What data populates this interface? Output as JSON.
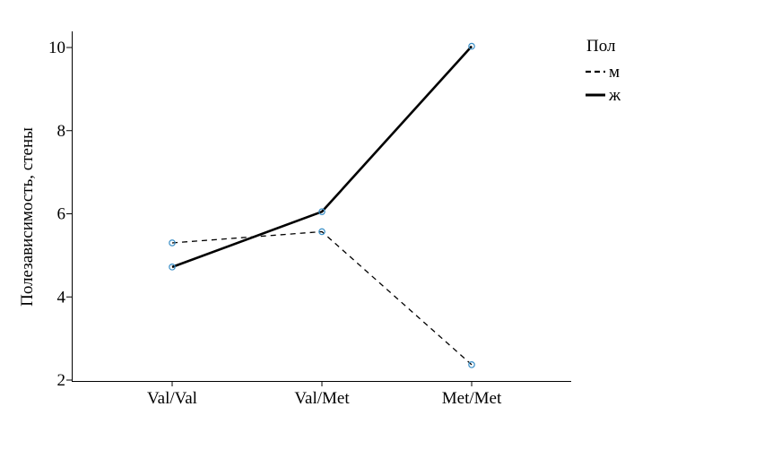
{
  "chart_data": {
    "type": "line",
    "categories": [
      "Val/Val",
      "Val/Met",
      "Met/Met"
    ],
    "ylabel": "Полезависимость, стены",
    "xlabel": "",
    "ylim": [
      2,
      10.5
    ],
    "yticks": [
      2,
      4,
      6,
      8,
      10
    ],
    "grid": false,
    "legend": {
      "title": "Пол",
      "placement": "right"
    },
    "series": [
      {
        "name": "м",
        "values": [
          5.3,
          5.57,
          2.37
        ],
        "line_style": "dashed"
      },
      {
        "name": "ж",
        "values": [
          4.72,
          6.05,
          10.03
        ],
        "line_style": "solid"
      }
    ],
    "colors": {
      "line": "#000000",
      "marker": "#3a8fc7"
    }
  }
}
